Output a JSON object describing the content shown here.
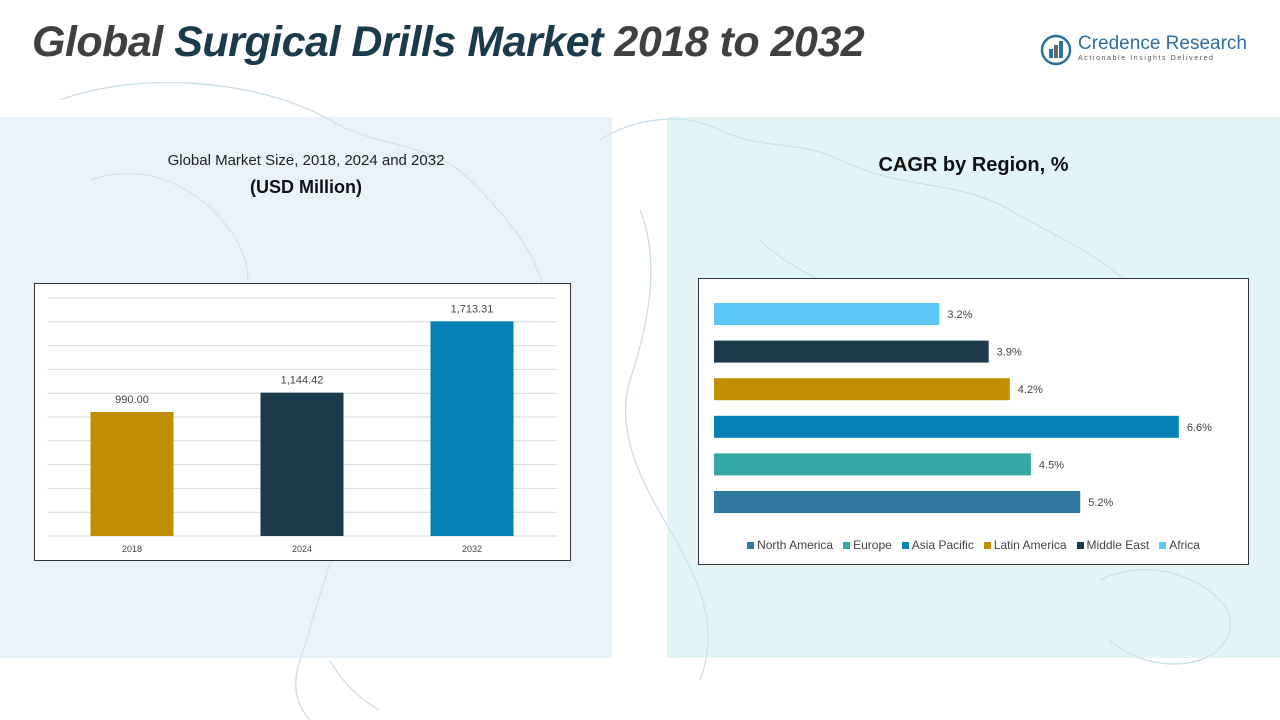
{
  "title": {
    "part1": "Global ",
    "part2": "Surgical Drills Market",
    "part3": " 2018 to 2032"
  },
  "logo": {
    "name": "Credence Research",
    "tagline": "Actionable Insights Delivered",
    "icon": "bar-chart-logo-icon"
  },
  "left_panel": {
    "subtitle": "Global Market Size, 2018, 2024 and 2032",
    "unit": "(USD Million)"
  },
  "right_panel": {
    "title": "CAGR by Region, %"
  },
  "colors": {
    "gold": "#bf8f00",
    "navy": "#1b3a4b",
    "blue": "#0580b5",
    "teal": "#35a8a5",
    "steel": "#2f7a9e",
    "sky": "#5bc8f5",
    "panel_left": "#e3eff6",
    "panel_right": "#dbf2f1"
  },
  "chart_data": [
    {
      "type": "bar",
      "categories": [
        "2018",
        "2024",
        "2032"
      ],
      "values": [
        990.0,
        1144.42,
        1713.31
      ],
      "value_labels": [
        "990.00",
        "1,144.42",
        "1,713.31"
      ],
      "colors": [
        "#bf8f00",
        "#1b3a4b",
        "#0580b5"
      ],
      "title": "Global Market Size, 2018, 2024 and 2032",
      "ylabel": "(USD Million)",
      "ylim": [
        0,
        1900
      ],
      "grid": true,
      "legend": "none"
    },
    {
      "type": "bar",
      "orientation": "horizontal",
      "title": "CAGR by Region, %",
      "categories": [
        "Africa",
        "Middle East",
        "Latin America",
        "Asia Pacific",
        "Europe",
        "North America"
      ],
      "values": [
        3.2,
        3.9,
        4.2,
        6.6,
        4.5,
        5.2
      ],
      "value_labels": [
        "3.2%",
        "3.9%",
        "4.2%",
        "6.6%",
        "4.5%",
        "5.2%"
      ],
      "colors": [
        "#5bc8f5",
        "#1b3a4b",
        "#bf8f00",
        "#0580b5",
        "#35a8a5",
        "#2f7a9e"
      ],
      "xlim": [
        0,
        7
      ],
      "grid": false,
      "legend": "bottom",
      "legend_entries": [
        {
          "name": "North America",
          "color": "#2f7a9e"
        },
        {
          "name": "Europe",
          "color": "#35a8a5"
        },
        {
          "name": "Asia Pacific",
          "color": "#0580b5"
        },
        {
          "name": "Latin America",
          "color": "#bf8f00"
        },
        {
          "name": "Middle East",
          "color": "#1b3a4b"
        },
        {
          "name": "Africa",
          "color": "#5bc8f5"
        }
      ]
    }
  ]
}
